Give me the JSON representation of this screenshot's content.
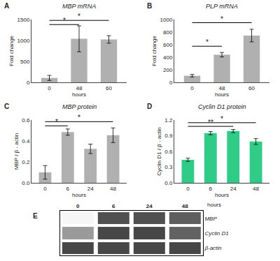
{
  "chart_data": [
    {
      "type": "bar",
      "panel_label": "A",
      "title": "MBP mRNA",
      "ylabel": "Fold change",
      "xlabel": "hours",
      "categories": [
        "0",
        "48",
        "60"
      ],
      "values": [
        105,
        1040,
        1025
      ],
      "errors": [
        60,
        310,
        90
      ],
      "color": "#b0b0b0",
      "ylim": [
        0,
        1500
      ],
      "yticks": [
        0,
        500,
        1000,
        1500
      ],
      "grid": false,
      "annotations": [
        {
          "text": "*",
          "x1": 0,
          "x2": 1,
          "y": 1380
        },
        {
          "text": "*",
          "x1": 0,
          "x2": 2,
          "y": 1480
        }
      ]
    },
    {
      "type": "bar",
      "panel_label": "B",
      "title": "PLP mRNA",
      "ylabel": "Fold change",
      "xlabel": "hours",
      "categories": [
        "0",
        "48",
        "60"
      ],
      "values": [
        105,
        440,
        745
      ],
      "errors": [
        20,
        35,
        100
      ],
      "color": "#b0b0b0",
      "ylim": [
        0,
        1000
      ],
      "yticks": [
        0,
        200,
        400,
        600,
        800,
        1000
      ],
      "grid": false,
      "annotations": [
        {
          "text": "*",
          "x1": 0,
          "x2": 1,
          "y": 575
        },
        {
          "text": "*",
          "x1": 0,
          "x2": 2,
          "y": 950
        }
      ]
    },
    {
      "type": "bar",
      "panel_label": "C",
      "title": "MBP protein",
      "ylabel": "MBP / β - actin",
      "xlabel": "hours",
      "categories": [
        "0",
        "6",
        "24",
        "48"
      ],
      "values": [
        0.1,
        0.485,
        0.325,
        0.455
      ],
      "errors": [
        0.065,
        0.03,
        0.045,
        0.07
      ],
      "color": "#b0b0b0",
      "ylim": [
        0.0,
        0.6
      ],
      "yticks": [
        {
          "value": 0.0,
          "label": "0.0"
        },
        0.2,
        0.4,
        0.6
      ],
      "grid": false,
      "annotations": [
        {
          "text": "*",
          "x1": 0,
          "x2": 1,
          "y": 0.545
        },
        {
          "text": "*",
          "x1": 0,
          "x2": 3,
          "y": 0.585
        }
      ]
    },
    {
      "type": "bar",
      "panel_label": "D",
      "title": "Cyclin D1 protein",
      "ylabel": "Cyclin D1 / β - actin",
      "xlabel": "hours",
      "categories": [
        "0",
        "6",
        "24",
        "48"
      ],
      "values": [
        0.44,
        0.95,
        0.99,
        0.79
      ],
      "errors": [
        0.03,
        0.03,
        0.03,
        0.055
      ],
      "color": "#2ecc87",
      "ylim": [
        0.0,
        1.2
      ],
      "yticks": [
        {
          "value": 0.0,
          "label": "0.0"
        },
        0.3,
        0.6,
        0.9,
        1.2
      ],
      "grid": false,
      "annotations": [
        {
          "text": "**",
          "x1": 0,
          "x2": 2,
          "y": 1.08
        },
        {
          "text": "*",
          "x1": 0,
          "x2": 3,
          "y": 1.15
        }
      ]
    },
    {
      "type": "heatmap",
      "panel_label": "E",
      "xlabel": "hours",
      "x": [
        "0",
        "6",
        "24",
        "48"
      ],
      "y": [
        "MBP",
        "Cyclin D1",
        "β-actin"
      ],
      "cells": [
        [
          0.04,
          0.78,
          0.78,
          0.72
        ],
        [
          0.45,
          0.82,
          0.82,
          0.7
        ],
        [
          0.82,
          0.82,
          0.82,
          0.82
        ]
      ],
      "zlim": [
        0,
        1
      ],
      "grid": false
    }
  ]
}
